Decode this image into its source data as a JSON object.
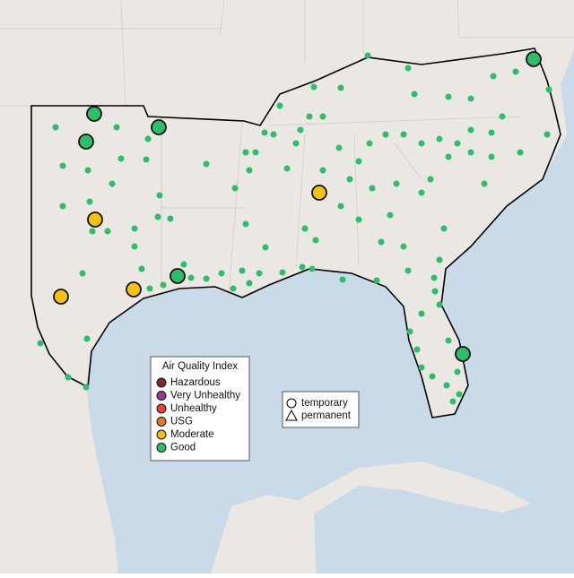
{
  "legend": {
    "title": "Air Quality Index",
    "items": [
      {
        "label": "Hazardous",
        "color": "#7e2b32"
      },
      {
        "label": "Very Unhealthy",
        "color": "#8f3f97"
      },
      {
        "label": "Unhealthy",
        "color": "#e8413c"
      },
      {
        "label": "USG",
        "color": "#e8762a"
      },
      {
        "label": "Moderate",
        "color": "#f4c20d"
      },
      {
        "label": "Good",
        "color": "#2bbf6a"
      }
    ]
  },
  "shape_legend": {
    "items": [
      {
        "label": "temporary"
      },
      {
        "label": "permanent"
      }
    ]
  }
}
